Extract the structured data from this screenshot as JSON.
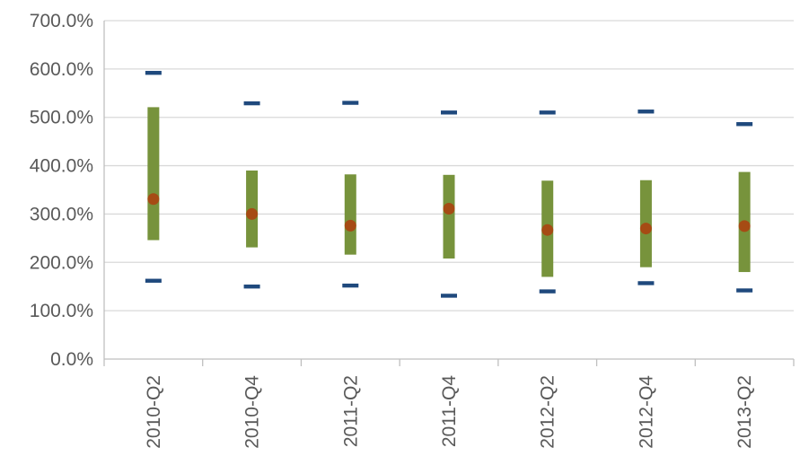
{
  "chart_data": {
    "type": "bar",
    "title": "",
    "xlabel": "",
    "ylabel": "",
    "categories": [
      "2010-Q2",
      "2010-Q4",
      "2011-Q2",
      "2011-Q4",
      "2012-Q2",
      "2012-Q4",
      "2013-Q2"
    ],
    "ylim": [
      0,
      700
    ],
    "yticks": [
      0,
      100,
      200,
      300,
      400,
      500,
      600,
      700
    ],
    "ytick_labels": [
      "0.0%",
      "100.0%",
      "200.0%",
      "300.0%",
      "400.0%",
      "500.0%",
      "600.0%",
      "700.0%"
    ],
    "value_format": "percent",
    "grid": true,
    "legend": "none",
    "series": [
      {
        "marker": "dash",
        "color": "#1F497D",
        "values": [
          592,
          529,
          530,
          510,
          510,
          512,
          486
        ]
      },
      {
        "marker": "range-bar",
        "color": "#77933C",
        "low": [
          246,
          231,
          216,
          208,
          170,
          190,
          180
        ],
        "high": [
          521,
          390,
          382,
          381,
          369,
          370,
          387
        ]
      },
      {
        "marker": "dot",
        "color": "#A64B14",
        "values": [
          331,
          300,
          276,
          311,
          267,
          270,
          275
        ]
      },
      {
        "marker": "dash",
        "color": "#1F497D",
        "values": [
          162,
          150,
          152,
          131,
          140,
          157,
          142
        ]
      }
    ]
  }
}
